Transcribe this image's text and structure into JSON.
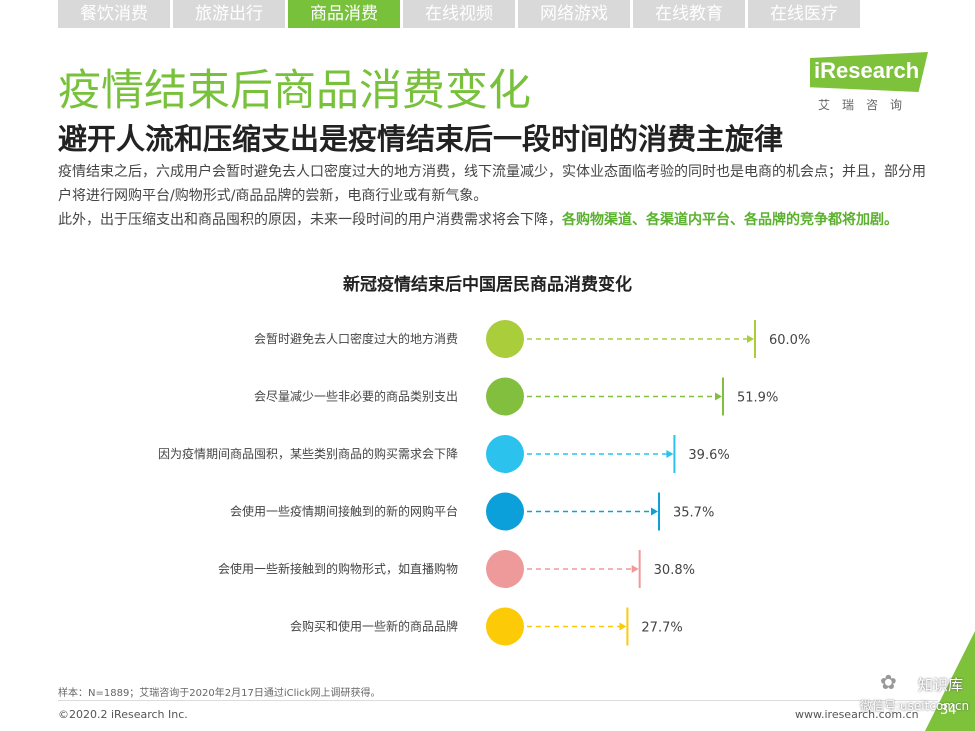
{
  "tabs": [
    {
      "label": "餐饮消费",
      "active": false
    },
    {
      "label": "旅游出行",
      "active": false
    },
    {
      "label": "商品消费",
      "active": true
    },
    {
      "label": "在线视频",
      "active": false
    },
    {
      "label": "网络游戏",
      "active": false
    },
    {
      "label": "在线教育",
      "active": false
    },
    {
      "label": "在线医疗",
      "active": false
    }
  ],
  "logo": {
    "name": "iResearch",
    "sub": "艾瑞咨询"
  },
  "header": {
    "title": "疫情结束后商品消费变化",
    "subtitle": "避开人流和压缩支出是疫情结束后一段时间的消费主旋律"
  },
  "description": {
    "p1": "疫情结束之后，六成用户会暂时避免去人口密度过大的地方消费，线下流量减少，实体业态面临考验的同时也是电商的机会点；并且，部分用户将进行网购平台/购物形式/商品品牌的尝新，电商行业或有新气象。",
    "p2_text": "此外，出于压缩支出和商品囤积的原因，未来一段时间的用户消费需求将会下降，",
    "p2_highlight": "各购物渠道、各渠道内平台、各品牌的竞争都将加剧。"
  },
  "chart_data": {
    "type": "bar",
    "title": "新冠疫情结束后中国居民商品消费变化",
    "categories": [
      "会暂时避免去人口密度过大的地方消费",
      "会尽量减少一些非必要的商品类别支出",
      "因为疫情期间商品囤积，某些类别商品的购买需求会下降",
      "会使用一些疫情期间接触到的新的网购平台",
      "会使用一些新接触到的购物形式，如直播购物",
      "会购买和使用一些新的商品品牌"
    ],
    "values": [
      60.0,
      51.9,
      39.6,
      35.7,
      30.8,
      27.7
    ],
    "value_labels": [
      "60.0%",
      "51.9%",
      "39.6%",
      "35.7%",
      "30.8%",
      "27.7%"
    ],
    "colors": [
      "#aacd3c",
      "#83bf3f",
      "#2bc3ee",
      "#0ba0da",
      "#ef9a9a",
      "#fcca06"
    ],
    "xlim": [
      0,
      60
    ],
    "grid": false
  },
  "footer": {
    "source": "样本：N=1889；艾瑞咨询于2020年2月17日通过iClick网上调研获得。",
    "copyright": "©2020.2 iResearch Inc.",
    "website": "www.iresearch.com.cn",
    "page": "34",
    "watermark": "知识库",
    "watermark_sub": "微信号:useitcomcn"
  }
}
